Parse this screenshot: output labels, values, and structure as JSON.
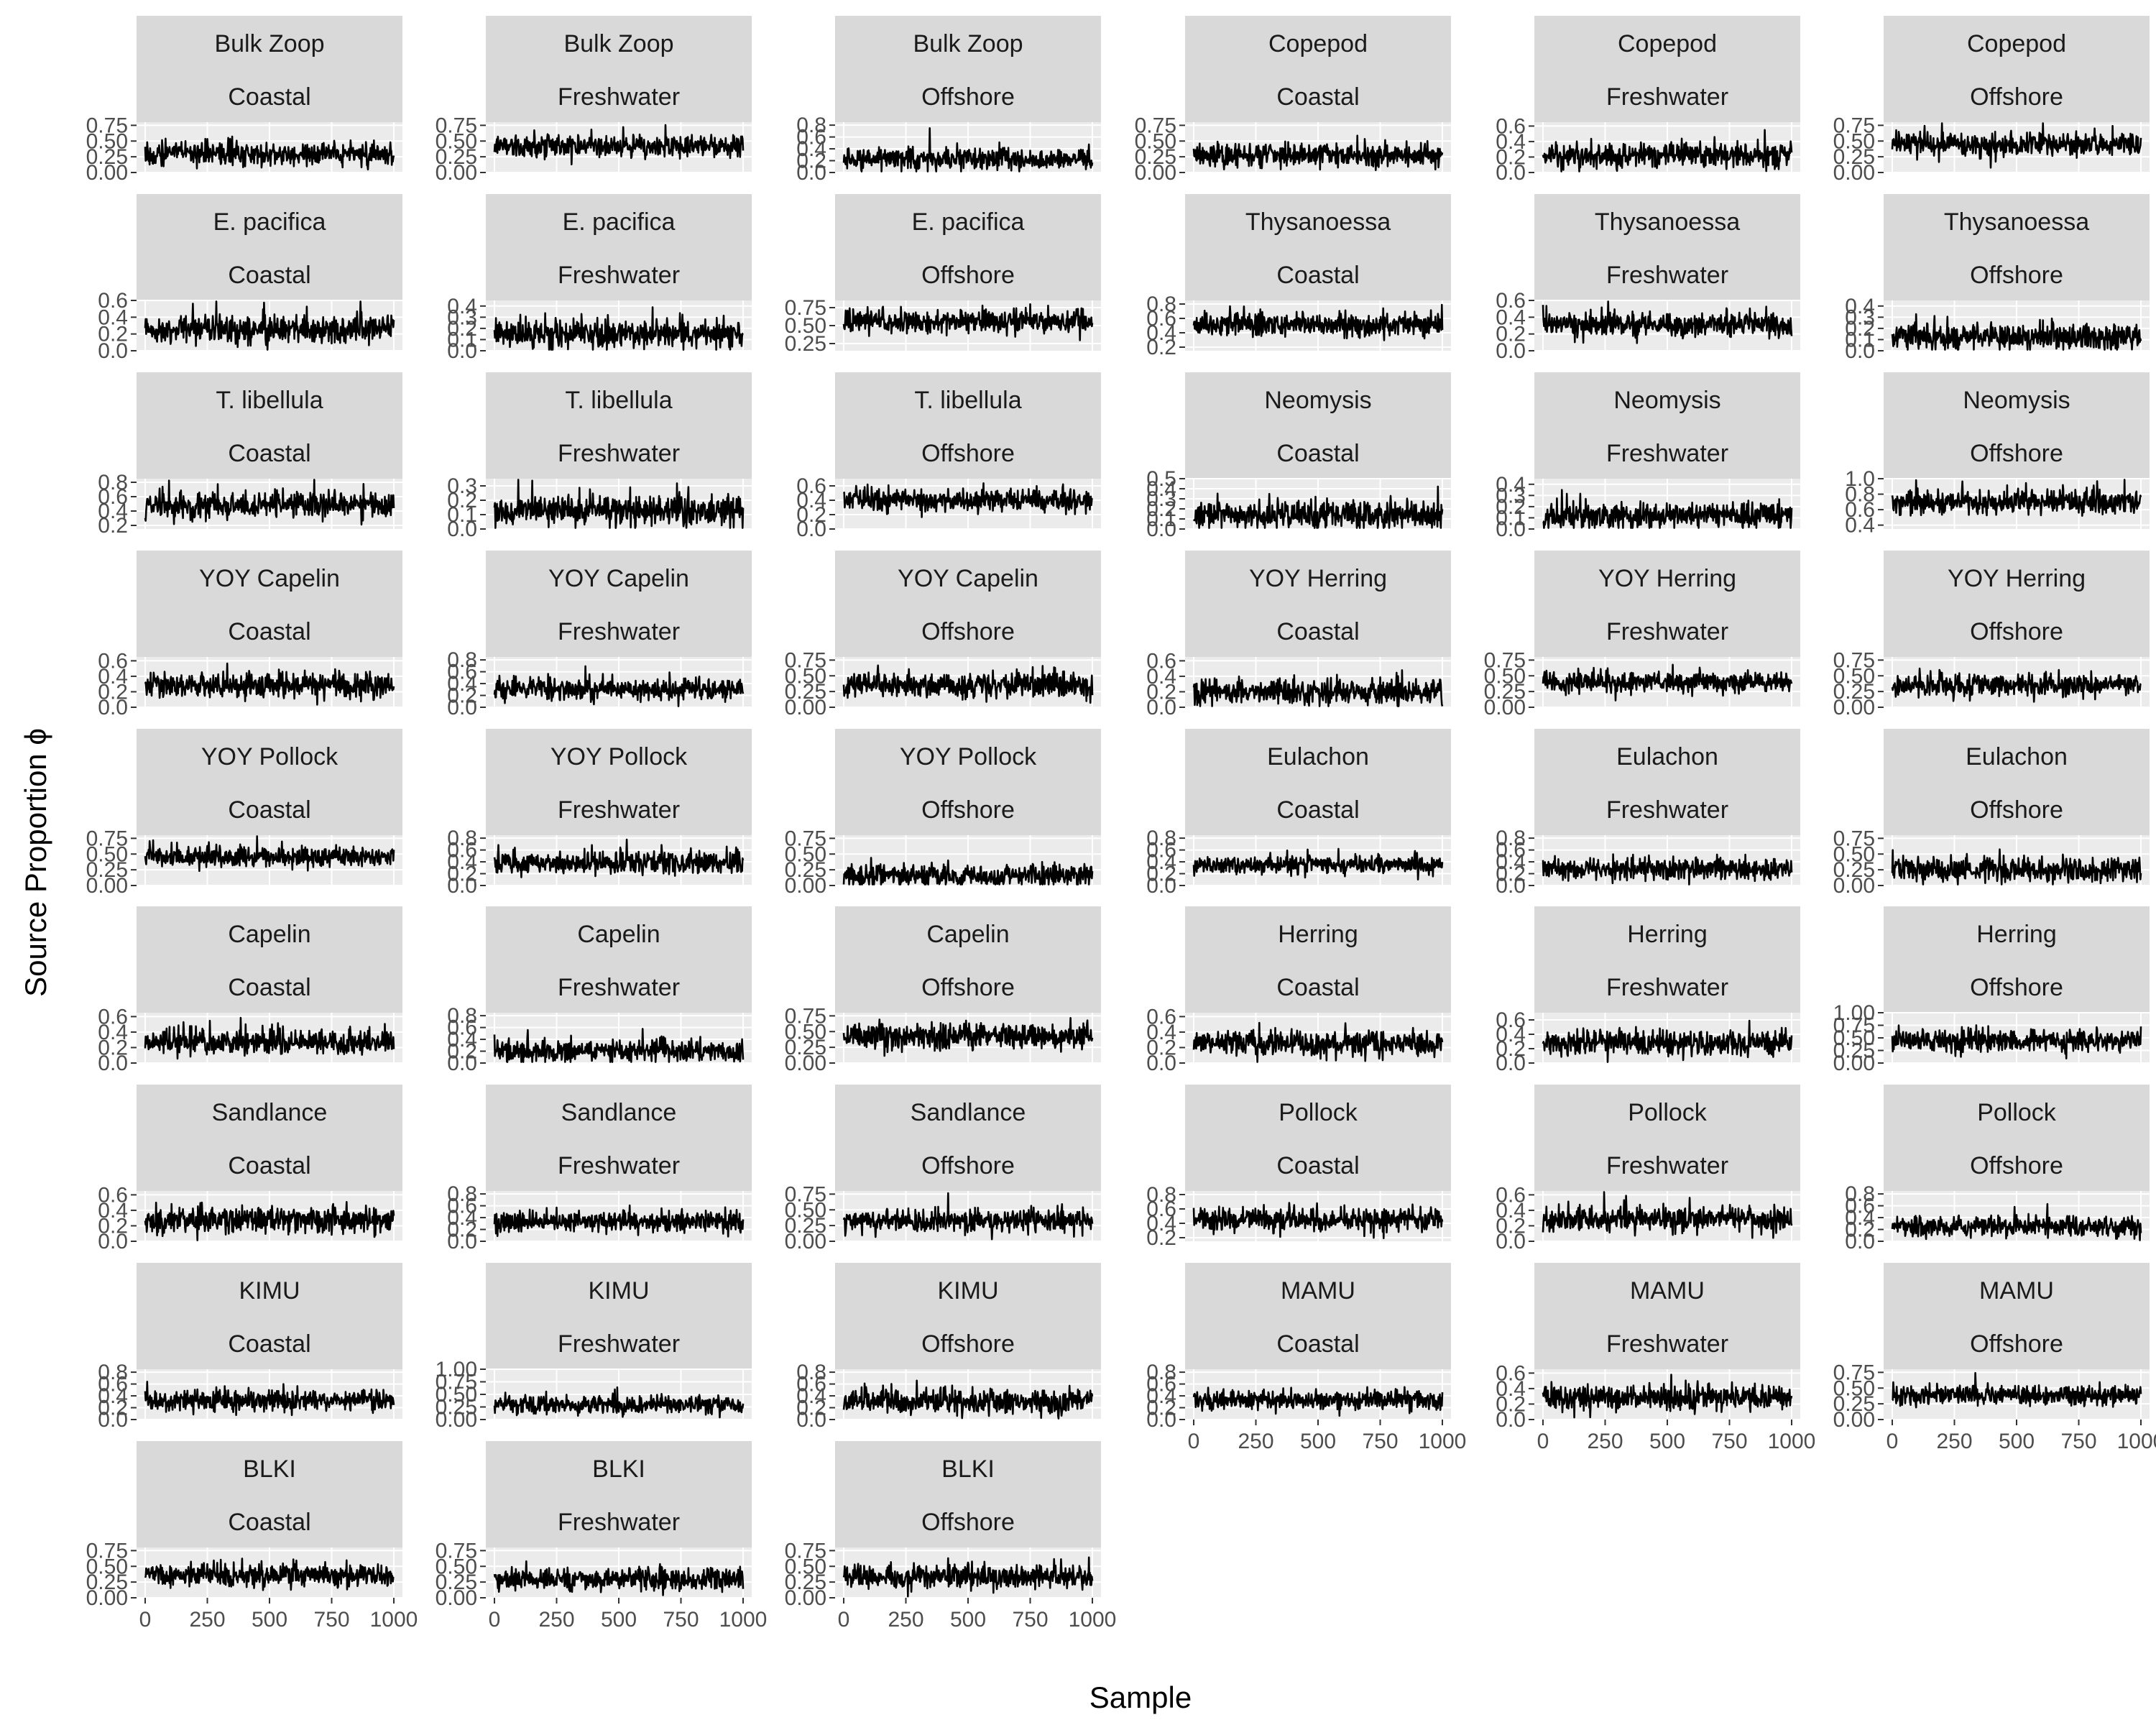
{
  "chart_data": {
    "type": "line",
    "xlabel": "Sample",
    "ylabel": "Source Proportion ϕ",
    "xlim": [
      0,
      1000
    ],
    "x_ticks": [
      0,
      250,
      500,
      750,
      1000
    ],
    "line_color": "#000000",
    "strip_color": "#d9d9d9",
    "panel_color": "#ebebeb",
    "grid": true,
    "panels": [
      {
        "source": "Bulk Zoop",
        "region": "Coastal",
        "ylim": [
          0,
          0.8
        ],
        "y_ticks": [
          "0.00",
          "0.25",
          "0.50",
          "0.75"
        ],
        "mean": 0.3,
        "sd": 0.09
      },
      {
        "source": "Bulk Zoop",
        "region": "Freshwater",
        "ylim": [
          0,
          0.8
        ],
        "y_ticks": [
          "0.00",
          "0.25",
          "0.50",
          "0.75"
        ],
        "mean": 0.42,
        "sd": 0.09
      },
      {
        "source": "Bulk Zoop",
        "region": "Offshore",
        "ylim": [
          0,
          0.85
        ],
        "y_ticks": [
          "0.0",
          "0.2",
          "0.4",
          "0.6",
          "0.8"
        ],
        "mean": 0.22,
        "sd": 0.09
      },
      {
        "source": "Copepod",
        "region": "Coastal",
        "ylim": [
          0,
          0.8
        ],
        "y_ticks": [
          "0.00",
          "0.25",
          "0.50",
          "0.75"
        ],
        "mean": 0.28,
        "sd": 0.09
      },
      {
        "source": "Copepod",
        "region": "Freshwater",
        "ylim": [
          0,
          0.65
        ],
        "y_ticks": [
          "0.0",
          "0.2",
          "0.4",
          "0.6"
        ],
        "mean": 0.22,
        "sd": 0.08
      },
      {
        "source": "Copepod",
        "region": "Offshore",
        "ylim": [
          0,
          0.8
        ],
        "y_ticks": [
          "0.00",
          "0.25",
          "0.50",
          "0.75"
        ],
        "mean": 0.45,
        "sd": 0.09
      },
      {
        "source": "E. pacifica",
        "region": "Coastal",
        "ylim": [
          0,
          0.6
        ],
        "y_ticks": [
          "0.0",
          "0.2",
          "0.4",
          "0.6"
        ],
        "mean": 0.25,
        "sd": 0.08
      },
      {
        "source": "E. pacifica",
        "region": "Freshwater",
        "ylim": [
          0,
          0.45
        ],
        "y_ticks": [
          "0.0",
          "0.1",
          "0.2",
          "0.3",
          "0.4"
        ],
        "mean": 0.15,
        "sd": 0.06
      },
      {
        "source": "E. pacifica",
        "region": "Offshore",
        "ylim": [
          0.15,
          0.85
        ],
        "y_ticks": [
          "0.25",
          "0.50",
          "0.75"
        ],
        "mean": 0.55,
        "sd": 0.08
      },
      {
        "source": "Thysanoessa",
        "region": "Coastal",
        "ylim": [
          0.15,
          0.85
        ],
        "y_ticks": [
          "0.2",
          "0.4",
          "0.6",
          "0.8"
        ],
        "mean": 0.52,
        "sd": 0.08
      },
      {
        "source": "Thysanoessa",
        "region": "Freshwater",
        "ylim": [
          0,
          0.6
        ],
        "y_ticks": [
          "0.0",
          "0.2",
          "0.4",
          "0.6"
        ],
        "mean": 0.32,
        "sd": 0.07
      },
      {
        "source": "Thysanoessa",
        "region": "Offshore",
        "ylim": [
          0,
          0.45
        ],
        "y_ticks": [
          "0.0",
          "0.1",
          "0.2",
          "0.3",
          "0.4"
        ],
        "mean": 0.12,
        "sd": 0.06
      },
      {
        "source": "T. libellula",
        "region": "Coastal",
        "ylim": [
          0.15,
          0.85
        ],
        "y_ticks": [
          "0.2",
          "0.4",
          "0.6",
          "0.8"
        ],
        "mean": 0.48,
        "sd": 0.09
      },
      {
        "source": "T. libellula",
        "region": "Freshwater",
        "ylim": [
          0,
          0.35
        ],
        "y_ticks": [
          "0.0",
          "0.1",
          "0.2",
          "0.3"
        ],
        "mean": 0.13,
        "sd": 0.05
      },
      {
        "source": "T. libellula",
        "region": "Offshore",
        "ylim": [
          0,
          0.7
        ],
        "y_ticks": [
          "0.0",
          "0.2",
          "0.4",
          "0.6"
        ],
        "mean": 0.4,
        "sd": 0.08
      },
      {
        "source": "Neomysis",
        "region": "Coastal",
        "ylim": [
          0,
          0.5
        ],
        "y_ticks": [
          "0.0",
          "0.1",
          "0.2",
          "0.3",
          "0.4",
          "0.5"
        ],
        "mean": 0.14,
        "sd": 0.07
      },
      {
        "source": "Neomysis",
        "region": "Freshwater",
        "ylim": [
          0,
          0.45
        ],
        "y_ticks": [
          "0.0",
          "0.1",
          "0.2",
          "0.3",
          "0.4"
        ],
        "mean": 0.12,
        "sd": 0.06
      },
      {
        "source": "Neomysis",
        "region": "Offshore",
        "ylim": [
          0.35,
          1.0
        ],
        "y_ticks": [
          "0.4",
          "0.6",
          "0.8",
          "1.0"
        ],
        "mean": 0.7,
        "sd": 0.08
      },
      {
        "source": "YOY Capelin",
        "region": "Coastal",
        "ylim": [
          0,
          0.65
        ],
        "y_ticks": [
          "0.0",
          "0.2",
          "0.4",
          "0.6"
        ],
        "mean": 0.28,
        "sd": 0.08
      },
      {
        "source": "YOY Capelin",
        "region": "Freshwater",
        "ylim": [
          0,
          0.85
        ],
        "y_ticks": [
          "0.0",
          "0.2",
          "0.4",
          "0.6",
          "0.8"
        ],
        "mean": 0.3,
        "sd": 0.09
      },
      {
        "source": "YOY Capelin",
        "region": "Offshore",
        "ylim": [
          0,
          0.8
        ],
        "y_ticks": [
          "0.00",
          "0.25",
          "0.50",
          "0.75"
        ],
        "mean": 0.35,
        "sd": 0.1
      },
      {
        "source": "YOY Herring",
        "region": "Coastal",
        "ylim": [
          0,
          0.65
        ],
        "y_ticks": [
          "0.0",
          "0.2",
          "0.4",
          "0.6"
        ],
        "mean": 0.2,
        "sd": 0.08
      },
      {
        "source": "YOY Herring",
        "region": "Freshwater",
        "ylim": [
          0,
          0.8
        ],
        "y_ticks": [
          "0.00",
          "0.25",
          "0.50",
          "0.75"
        ],
        "mean": 0.4,
        "sd": 0.08
      },
      {
        "source": "YOY Herring",
        "region": "Offshore",
        "ylim": [
          0,
          0.8
        ],
        "y_ticks": [
          "0.00",
          "0.25",
          "0.50",
          "0.75"
        ],
        "mean": 0.35,
        "sd": 0.09
      },
      {
        "source": "YOY Pollock",
        "region": "Coastal",
        "ylim": [
          0,
          0.8
        ],
        "y_ticks": [
          "0.00",
          "0.25",
          "0.50",
          "0.75"
        ],
        "mean": 0.45,
        "sd": 0.08
      },
      {
        "source": "YOY Pollock",
        "region": "Freshwater",
        "ylim": [
          0,
          0.85
        ],
        "y_ticks": [
          "0.0",
          "0.2",
          "0.4",
          "0.6",
          "0.8"
        ],
        "mean": 0.38,
        "sd": 0.09
      },
      {
        "source": "YOY Pollock",
        "region": "Offshore",
        "ylim": [
          0,
          0.8
        ],
        "y_ticks": [
          "0.00",
          "0.25",
          "0.50",
          "0.75"
        ],
        "mean": 0.15,
        "sd": 0.09
      },
      {
        "source": "Eulachon",
        "region": "Coastal",
        "ylim": [
          0,
          0.85
        ],
        "y_ticks": [
          "0.0",
          "0.2",
          "0.4",
          "0.6",
          "0.8"
        ],
        "mean": 0.35,
        "sd": 0.08
      },
      {
        "source": "Eulachon",
        "region": "Freshwater",
        "ylim": [
          0,
          0.85
        ],
        "y_ticks": [
          "0.0",
          "0.2",
          "0.4",
          "0.6",
          "0.8"
        ],
        "mean": 0.28,
        "sd": 0.09
      },
      {
        "source": "Eulachon",
        "region": "Offshore",
        "ylim": [
          0,
          0.8
        ],
        "y_ticks": [
          "0.00",
          "0.25",
          "0.50",
          "0.75"
        ],
        "mean": 0.25,
        "sd": 0.09
      },
      {
        "source": "Capelin",
        "region": "Coastal",
        "ylim": [
          0,
          0.65
        ],
        "y_ticks": [
          "0.0",
          "0.2",
          "0.4",
          "0.6"
        ],
        "mean": 0.28,
        "sd": 0.08
      },
      {
        "source": "Capelin",
        "region": "Freshwater",
        "ylim": [
          0,
          0.85
        ],
        "y_ticks": [
          "0.0",
          "0.2",
          "0.4",
          "0.6",
          "0.8"
        ],
        "mean": 0.2,
        "sd": 0.09
      },
      {
        "source": "Capelin",
        "region": "Offshore",
        "ylim": [
          0,
          0.8
        ],
        "y_ticks": [
          "0.00",
          "0.25",
          "0.50",
          "0.75"
        ],
        "mean": 0.42,
        "sd": 0.1
      },
      {
        "source": "Herring",
        "region": "Coastal",
        "ylim": [
          0,
          0.65
        ],
        "y_ticks": [
          "0.0",
          "0.2",
          "0.4",
          "0.6"
        ],
        "mean": 0.25,
        "sd": 0.08
      },
      {
        "source": "Herring",
        "region": "Freshwater",
        "ylim": [
          0,
          0.7
        ],
        "y_ticks": [
          "0.0",
          "0.2",
          "0.4",
          "0.6"
        ],
        "mean": 0.28,
        "sd": 0.09
      },
      {
        "source": "Herring",
        "region": "Offshore",
        "ylim": [
          0,
          1.0
        ],
        "y_ticks": [
          "0.00",
          "0.25",
          "0.50",
          "0.75",
          "1.00"
        ],
        "mean": 0.45,
        "sd": 0.11
      },
      {
        "source": "Sandlance",
        "region": "Coastal",
        "ylim": [
          0,
          0.65
        ],
        "y_ticks": [
          "0.0",
          "0.2",
          "0.4",
          "0.6"
        ],
        "mean": 0.28,
        "sd": 0.08
      },
      {
        "source": "Sandlance",
        "region": "Freshwater",
        "ylim": [
          0,
          0.85
        ],
        "y_ticks": [
          "0.0",
          "0.2",
          "0.4",
          "0.6",
          "0.8"
        ],
        "mean": 0.33,
        "sd": 0.09
      },
      {
        "source": "Sandlance",
        "region": "Offshore",
        "ylim": [
          0,
          0.8
        ],
        "y_ticks": [
          "0.00",
          "0.25",
          "0.50",
          "0.75"
        ],
        "mean": 0.32,
        "sd": 0.09
      },
      {
        "source": "Pollock",
        "region": "Coastal",
        "ylim": [
          0.15,
          0.85
        ],
        "y_ticks": [
          "0.2",
          "0.4",
          "0.6",
          "0.8"
        ],
        "mean": 0.45,
        "sd": 0.08
      },
      {
        "source": "Pollock",
        "region": "Freshwater",
        "ylim": [
          0,
          0.65
        ],
        "y_ticks": [
          "0.0",
          "0.2",
          "0.4",
          "0.6"
        ],
        "mean": 0.28,
        "sd": 0.08
      },
      {
        "source": "Pollock",
        "region": "Offshore",
        "ylim": [
          0,
          0.85
        ],
        "y_ticks": [
          "0.0",
          "0.2",
          "0.4",
          "0.6",
          "0.8"
        ],
        "mean": 0.25,
        "sd": 0.09
      },
      {
        "source": "KIMU",
        "region": "Coastal",
        "ylim": [
          0,
          0.85
        ],
        "y_ticks": [
          "0.0",
          "0.2",
          "0.4",
          "0.6",
          "0.8"
        ],
        "mean": 0.32,
        "sd": 0.09
      },
      {
        "source": "KIMU",
        "region": "Freshwater",
        "ylim": [
          0,
          1.0
        ],
        "y_ticks": [
          "0.00",
          "0.25",
          "0.50",
          "0.75",
          "1.00"
        ],
        "mean": 0.3,
        "sd": 0.09
      },
      {
        "source": "KIMU",
        "region": "Offshore",
        "ylim": [
          0,
          0.85
        ],
        "y_ticks": [
          "0.0",
          "0.2",
          "0.4",
          "0.6",
          "0.8"
        ],
        "mean": 0.3,
        "sd": 0.1
      },
      {
        "source": "MAMU",
        "region": "Coastal",
        "ylim": [
          0,
          0.85
        ],
        "y_ticks": [
          "0.0",
          "0.2",
          "0.4",
          "0.6",
          "0.8"
        ],
        "mean": 0.32,
        "sd": 0.08
      },
      {
        "source": "MAMU",
        "region": "Freshwater",
        "ylim": [
          0,
          0.65
        ],
        "y_ticks": [
          "0.0",
          "0.2",
          "0.4",
          "0.6"
        ],
        "mean": 0.28,
        "sd": 0.08
      },
      {
        "source": "MAMU",
        "region": "Offshore",
        "ylim": [
          0,
          0.8
        ],
        "y_ticks": [
          "0.00",
          "0.25",
          "0.50",
          "0.75"
        ],
        "mean": 0.38,
        "sd": 0.08
      },
      {
        "source": "BLKI",
        "region": "Coastal",
        "ylim": [
          0,
          0.8
        ],
        "y_ticks": [
          "0.00",
          "0.25",
          "0.50",
          "0.75"
        ],
        "mean": 0.35,
        "sd": 0.09
      },
      {
        "source": "BLKI",
        "region": "Freshwater",
        "ylim": [
          0,
          0.8
        ],
        "y_ticks": [
          "0.00",
          "0.25",
          "0.50",
          "0.75"
        ],
        "mean": 0.3,
        "sd": 0.09
      },
      {
        "source": "BLKI",
        "region": "Offshore",
        "ylim": [
          0,
          0.8
        ],
        "y_ticks": [
          "0.00",
          "0.25",
          "0.50",
          "0.75"
        ],
        "mean": 0.33,
        "sd": 0.09
      }
    ]
  }
}
